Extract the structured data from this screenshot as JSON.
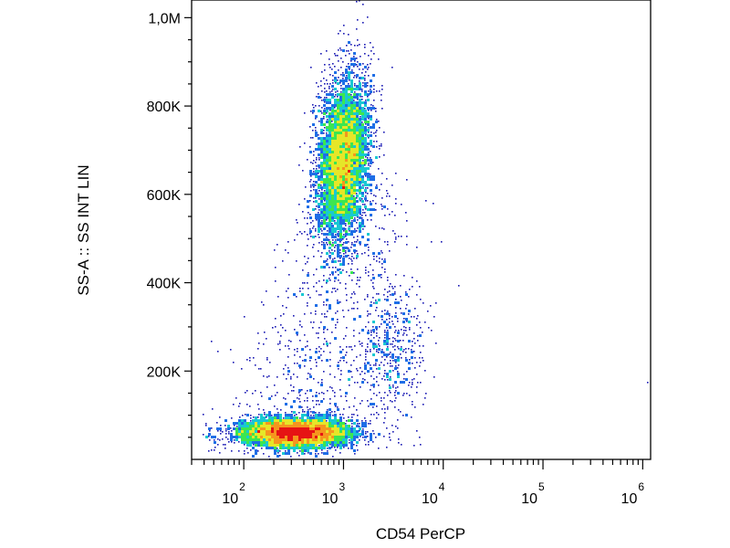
{
  "chart_data": {
    "type": "scatter",
    "subtype": "flow-cytometry-density-dot-plot",
    "title": "",
    "xlabel": "CD54 PerCP",
    "ylabel": "SS-A :: SS INT LIN",
    "x_scale": "log",
    "xlim": [
      30,
      1200000
    ],
    "ylim": [
      0,
      1040000
    ],
    "x_tick_labels": [
      {
        "base": "10",
        "exp": "2",
        "value": 100
      },
      {
        "base": "10",
        "exp": "3",
        "value": 1000
      },
      {
        "base": "10",
        "exp": "4",
        "value": 10000
      },
      {
        "base": "10",
        "exp": "5",
        "value": 100000
      },
      {
        "base": "10",
        "exp": "6",
        "value": 1000000
      }
    ],
    "y_tick_labels": [
      {
        "label": "200K",
        "value": 200000
      },
      {
        "label": "400K",
        "value": 400000
      },
      {
        "label": "600K",
        "value": 600000
      },
      {
        "label": "800K",
        "value": 800000
      },
      {
        "label": "1,0M",
        "value": 1000000
      }
    ],
    "colormap": [
      "#1a1ab4",
      "#1e6ee6",
      "#19c8d2",
      "#3ce650",
      "#e6e628",
      "#f5961e",
      "#e61414"
    ],
    "populations": [
      {
        "name": "",
        "x_center": 1000,
        "y_center": 680000,
        "x_spread_log10": 0.13,
        "y_spread": 95000,
        "tilt": 0.32,
        "approx_events": 5200
      },
      {
        "name": "",
        "x_center": 330,
        "y_center": 60000,
        "x_spread_log10": 0.28,
        "y_spread": 17000,
        "tilt": 0.05,
        "approx_events": 5200
      },
      {
        "name": "",
        "x_center": 3000,
        "y_center": 260000,
        "x_spread_log10": 0.17,
        "y_spread": 85000,
        "tilt": 0.0,
        "approx_events": 450
      }
    ],
    "grid": false,
    "legend": "none"
  }
}
